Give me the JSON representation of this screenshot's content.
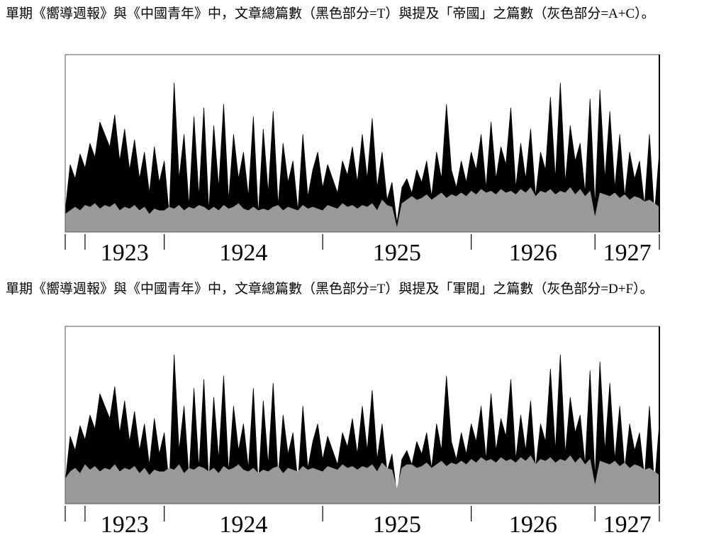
{
  "chart_data": [
    {
      "type": "area",
      "title": "單期《嚮導週報》與《中國青年》中，文章總篇數（黑色部分=T）與提及「帝國」之篇數（灰色部分=A+C）。",
      "xlim": [
        0,
        120
      ],
      "ylim": [
        0,
        100
      ],
      "year_boundaries": [
        0,
        4,
        20,
        52,
        82,
        107,
        120
      ],
      "year_labels": [
        "1923",
        "1924",
        "1925",
        "1926",
        "1927"
      ],
      "series": [
        {
          "color": "#000000",
          "values": [
            12,
            38,
            30,
            44,
            36,
            50,
            42,
            62,
            55,
            48,
            66,
            40,
            58,
            35,
            52,
            30,
            45,
            22,
            48,
            28,
            40,
            10,
            84,
            30,
            55,
            15,
            65,
            20,
            70,
            12,
            60,
            25,
            72,
            18,
            55,
            30,
            45,
            20,
            65,
            10,
            58,
            22,
            68,
            15,
            50,
            28,
            40,
            12,
            55,
            20,
            35,
            45,
            25,
            38,
            30,
            22,
            40,
            32,
            48,
            28,
            55,
            30,
            64,
            25,
            45,
            18,
            28,
            5,
            25,
            30,
            22,
            35,
            28,
            40,
            20,
            45,
            30,
            72,
            35,
            25,
            40,
            28,
            45,
            35,
            55,
            25,
            62,
            30,
            48,
            38,
            70,
            25,
            50,
            30,
            58,
            20,
            45,
            35,
            76,
            30,
            84,
            28,
            60,
            40,
            50,
            22,
            75,
            15,
            80,
            30,
            68,
            25,
            55,
            20,
            45,
            30,
            40,
            15,
            55,
            10,
            45
          ]
        },
        {
          "color": "#999999",
          "values": [
            10,
            12,
            14,
            12,
            15,
            14,
            16,
            13,
            15,
            14,
            16,
            12,
            14,
            13,
            15,
            12,
            14,
            10,
            13,
            12,
            12,
            14,
            13,
            15,
            12,
            14,
            13,
            15,
            14,
            12,
            14,
            12,
            15,
            13,
            14,
            16,
            13,
            12,
            14,
            12,
            13,
            12,
            14,
            15,
            12,
            14,
            13,
            12,
            15,
            13,
            14,
            13,
            12,
            15,
            14,
            13,
            16,
            14,
            15,
            13,
            15,
            14,
            16,
            12,
            18,
            15,
            14,
            2,
            16,
            18,
            20,
            18,
            19,
            21,
            18,
            20,
            22,
            19,
            21,
            20,
            22,
            20,
            23,
            21,
            24,
            22,
            23,
            21,
            24,
            22,
            23,
            21,
            24,
            22,
            25,
            20,
            23,
            22,
            24,
            21,
            23,
            22,
            25,
            21,
            24,
            20,
            23,
            8,
            22,
            21,
            20,
            22,
            19,
            21,
            18,
            20,
            19,
            17,
            18,
            16,
            14
          ]
        }
      ]
    },
    {
      "type": "area",
      "title": "單期《嚮導週報》與《中國青年》中，文章總篇數（黑色部分=T）與提及「軍閥」之篇數（灰色部分=D+F）。",
      "xlim": [
        0,
        120
      ],
      "ylim": [
        0,
        100
      ],
      "year_boundaries": [
        0,
        4,
        20,
        52,
        82,
        107,
        120
      ],
      "year_labels": [
        "1923",
        "1924",
        "1925",
        "1926",
        "1927"
      ],
      "series": [
        {
          "color": "#000000",
          "values": [
            12,
            38,
            30,
            44,
            36,
            50,
            42,
            62,
            55,
            48,
            66,
            40,
            58,
            35,
            52,
            30,
            45,
            22,
            48,
            28,
            40,
            10,
            84,
            30,
            55,
            15,
            65,
            20,
            70,
            12,
            60,
            25,
            72,
            18,
            55,
            30,
            45,
            20,
            65,
            10,
            58,
            22,
            68,
            15,
            50,
            28,
            40,
            12,
            55,
            20,
            35,
            45,
            25,
            38,
            30,
            22,
            40,
            32,
            48,
            28,
            55,
            30,
            64,
            25,
            45,
            18,
            28,
            5,
            25,
            30,
            22,
            35,
            28,
            40,
            20,
            45,
            30,
            72,
            35,
            25,
            40,
            28,
            45,
            35,
            55,
            25,
            62,
            30,
            48,
            38,
            70,
            25,
            50,
            30,
            58,
            20,
            45,
            35,
            76,
            30,
            84,
            28,
            60,
            40,
            50,
            22,
            75,
            15,
            80,
            30,
            68,
            25,
            55,
            20,
            45,
            30,
            40,
            15,
            55,
            10,
            45
          ]
        },
        {
          "color": "#999999",
          "values": [
            14,
            18,
            20,
            17,
            22,
            19,
            21,
            18,
            20,
            19,
            22,
            18,
            20,
            19,
            21,
            17,
            20,
            16,
            19,
            18,
            18,
            20,
            19,
            22,
            17,
            20,
            19,
            21,
            20,
            18,
            20,
            17,
            21,
            19,
            20,
            22,
            19,
            18,
            20,
            17,
            19,
            18,
            20,
            21,
            17,
            20,
            19,
            18,
            21,
            19,
            20,
            19,
            18,
            21,
            20,
            19,
            22,
            20,
            21,
            19,
            21,
            20,
            22,
            18,
            23,
            20,
            19,
            8,
            20,
            22,
            22,
            20,
            21,
            23,
            20,
            22,
            24,
            21,
            23,
            22,
            24,
            22,
            25,
            23,
            26,
            24,
            25,
            23,
            26,
            24,
            25,
            23,
            26,
            24,
            27,
            22,
            25,
            24,
            26,
            23,
            25,
            24,
            27,
            23,
            26,
            22,
            25,
            10,
            24,
            23,
            22,
            24,
            21,
            23,
            20,
            22,
            21,
            19,
            20,
            18,
            16
          ]
        }
      ]
    }
  ]
}
